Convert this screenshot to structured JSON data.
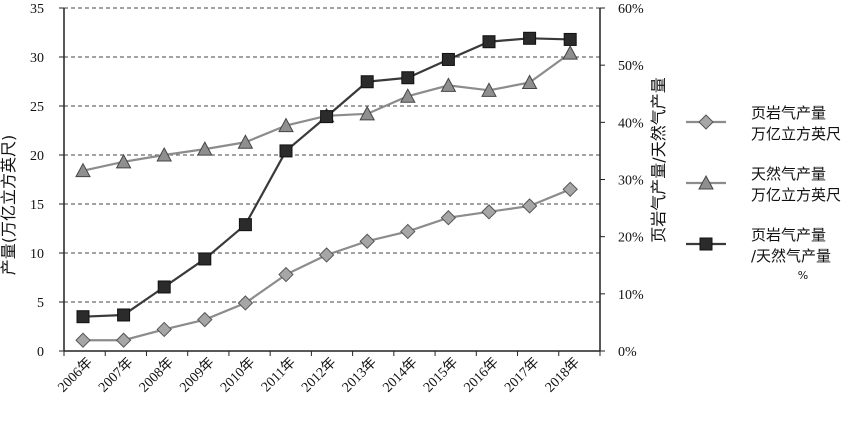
{
  "chart_data": {
    "type": "line",
    "categories": [
      "2006年",
      "2007年",
      "2008年",
      "2009年",
      "2010年",
      "2011年",
      "2012年",
      "2013年",
      "2014年",
      "2015年",
      "2016年",
      "2017年",
      "2018年"
    ],
    "y_left": {
      "label": "产量(万亿立方英尺)",
      "ylim": [
        0,
        35
      ],
      "ticks": [
        "0",
        "5",
        "10",
        "15",
        "20",
        "25",
        "30",
        "35"
      ]
    },
    "y_right": {
      "label": "页岩气产量/天然气产量",
      "ylim": [
        0,
        60
      ],
      "ticks": [
        "0%",
        "10%",
        "20%",
        "30%",
        "40%",
        "50%",
        "60%"
      ]
    },
    "grid": "dashed horizontal",
    "legend_position": "right",
    "series": [
      {
        "legend": [
          "页岩气产量",
          "万亿立方英尺"
        ],
        "axis": "left",
        "marker": "diamond",
        "color": "#8c8c8c",
        "values": [
          1.1,
          1.1,
          2.2,
          3.2,
          4.9,
          7.8,
          9.8,
          11.2,
          12.2,
          13.6,
          14.2,
          14.8,
          16.5
        ]
      },
      {
        "legend": [
          "天然气产量",
          "万亿立方英尺"
        ],
        "axis": "left",
        "marker": "triangle",
        "color": "#8c8c8c",
        "values": [
          18.4,
          19.3,
          20.0,
          20.6,
          21.3,
          23.0,
          24.0,
          24.2,
          26.0,
          27.1,
          26.6,
          27.4,
          30.4
        ]
      },
      {
        "legend": [
          "页岩气产量",
          "/天然气产量",
          "%"
        ],
        "axis": "right",
        "marker": "square",
        "color": "#3a3a3a",
        "values": [
          6.0,
          6.3,
          11.2,
          16.1,
          22.1,
          35.0,
          41.0,
          47.1,
          47.8,
          51.0,
          54.1,
          54.7,
          54.5
        ]
      }
    ]
  }
}
